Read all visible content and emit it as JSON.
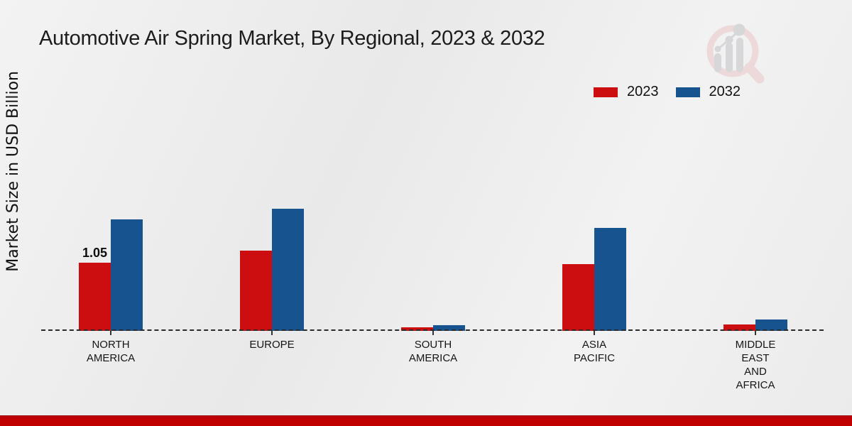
{
  "title": "Automotive Air Spring Market, By Regional, 2023 & 2032",
  "y_axis_label": "Market Size in USD Billion",
  "legend": {
    "items": [
      {
        "label": "2023",
        "color": "#cc0e10"
      },
      {
        "label": "2032",
        "color": "#17538e"
      }
    ]
  },
  "chart_data": {
    "type": "bar",
    "title": "Automotive Air Spring Market, By Regional, 2023 & 2032",
    "xlabel": "",
    "ylabel": "Market Size in USD Billion",
    "unit": "USD Billion",
    "categories": [
      "North America",
      "Europe",
      "South America",
      "Asia Pacific",
      "Middle East and Africa"
    ],
    "category_display_lines": [
      [
        "NORTH",
        "AMERICA"
      ],
      [
        "EUROPE"
      ],
      [
        "SOUTH",
        "AMERICA"
      ],
      [
        "ASIA",
        "PACIFIC"
      ],
      [
        "MIDDLE",
        "EAST",
        "AND",
        "AFRICA"
      ]
    ],
    "series": [
      {
        "name": "2023",
        "color": "#cc0e10",
        "values": [
          1.05,
          1.24,
          0.05,
          1.03,
          0.1
        ]
      },
      {
        "name": "2032",
        "color": "#17538e",
        "values": [
          1.72,
          1.89,
          0.09,
          1.59,
          0.18
        ]
      }
    ],
    "value_labels": [
      {
        "category": "North America",
        "series": "2023",
        "text": "1.05"
      }
    ],
    "ylim": [
      0,
      2.2
    ],
    "grid": false,
    "legend_position": "top-right",
    "baseline_style": "dashed"
  },
  "watermark_icon": "magnifier-growth-chart-logo",
  "colors": {
    "bar_2023": "#cc0e10",
    "bar_2032": "#17538e",
    "footer_strip": "#c00000",
    "background": "#ededee",
    "text": "#1a1a1a"
  }
}
